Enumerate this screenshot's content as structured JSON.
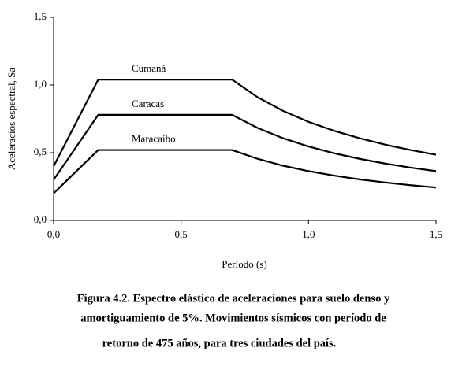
{
  "chart_data": {
    "type": "line",
    "x_label": "Período (s)",
    "y_label": "Aceleracios espectral, Sa",
    "x": [
      0,
      0.175,
      0.7,
      0.8,
      0.9,
      1.0,
      1.1,
      1.2,
      1.3,
      1.4,
      1.5
    ],
    "series": [
      {
        "name": "Cumaná",
        "color": "#000000",
        "values": [
          0.4,
          1.04,
          1.04,
          0.91,
          0.809,
          0.728,
          0.662,
          0.607,
          0.56,
          0.52,
          0.485
        ]
      },
      {
        "name": "Caracas",
        "color": "#000000",
        "values": [
          0.3,
          0.78,
          0.78,
          0.683,
          0.607,
          0.546,
          0.496,
          0.455,
          0.42,
          0.39,
          0.364
        ]
      },
      {
        "name": "Maracaibo",
        "color": "#000000",
        "values": [
          0.2,
          0.52,
          0.52,
          0.455,
          0.404,
          0.364,
          0.331,
          0.303,
          0.28,
          0.26,
          0.243
        ]
      }
    ],
    "xlim": [
      0,
      1.5
    ],
    "ylim": [
      0,
      1.5
    ],
    "xticks": [
      {
        "value": 0,
        "label": "0,0"
      },
      {
        "value": 0.5,
        "label": "0,5"
      },
      {
        "value": 1.0,
        "label": "1,0"
      },
      {
        "value": 1.5,
        "label": "1,5"
      }
    ],
    "yticks": [
      {
        "value": 0,
        "label": "0,0"
      },
      {
        "value": 0.5,
        "label": "0,5"
      },
      {
        "value": 1.0,
        "label": "1,0"
      },
      {
        "value": 1.5,
        "label": "1,5"
      }
    ],
    "caption": [
      "Figura 4.2. Espectro elástico de aceleraciones para suelo denso y",
      "amortiguamiento de 5%.  Movimientos sísmicos con período de",
      "retorno de 475 años, para tres ciudades del país."
    ]
  }
}
